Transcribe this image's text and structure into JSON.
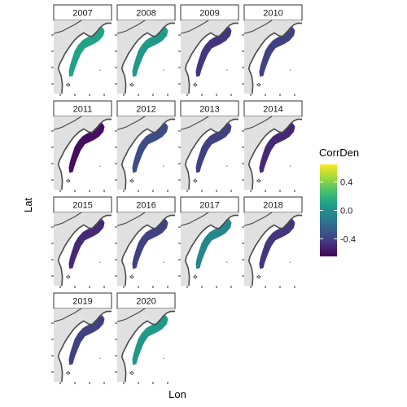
{
  "chart_data": {
    "type": "faceted-map",
    "xlabel": "Lon",
    "ylabel": "Lat",
    "panels": [
      {
        "year": "2007",
        "value": 0.1
      },
      {
        "year": "2008",
        "value": 0.05
      },
      {
        "year": "2009",
        "value": -0.45
      },
      {
        "year": "2010",
        "value": -0.4
      },
      {
        "year": "2011",
        "value": -0.6
      },
      {
        "year": "2012",
        "value": -0.35
      },
      {
        "year": "2013",
        "value": -0.4
      },
      {
        "year": "2014",
        "value": -0.5
      },
      {
        "year": "2015",
        "value": -0.5
      },
      {
        "year": "2016",
        "value": -0.4
      },
      {
        "year": "2017",
        "value": -0.05
      },
      {
        "year": "2018",
        "value": -0.45
      },
      {
        "year": "2019",
        "value": -0.4
      },
      {
        "year": "2020",
        "value": 0.05
      }
    ],
    "legend": {
      "title": "CorrDen",
      "range": [
        -0.65,
        0.65
      ],
      "ticks": [
        0.4,
        0.0,
        -0.4
      ],
      "tick_labels": [
        "0.4",
        "0.0",
        "-0.4"
      ],
      "placement": "right",
      "palette": [
        "#440154",
        "#46327e",
        "#365c8d",
        "#277f8e",
        "#1fa187",
        "#4ac16d",
        "#a0da39",
        "#fde725"
      ]
    },
    "land_color": "#e0e0e0",
    "ocean_color": "#ffffff"
  }
}
